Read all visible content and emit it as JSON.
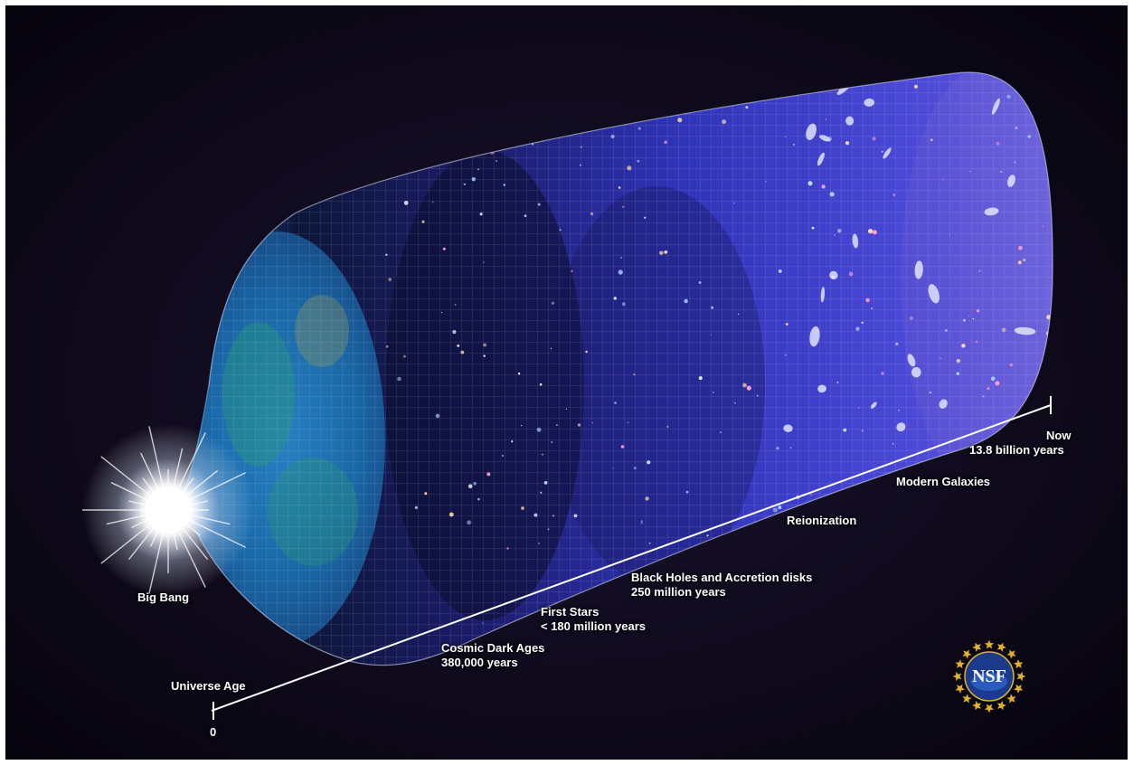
{
  "labels": {
    "big_bang": "Big Bang",
    "universe_age": "Universe Age",
    "zero": "0",
    "cosmic_dark_ages_title": "Cosmic Dark Ages",
    "cosmic_dark_ages_time": "380,000 years",
    "first_stars_title": "First Stars",
    "first_stars_time": "< 180 million years",
    "black_holes_title": "Black Holes and Accretion disks",
    "black_holes_time": "250 million years",
    "reionization": "Reionization",
    "modern_galaxies": "Modern Galaxies",
    "now_title": "Now",
    "now_time": "13.8 billion years"
  },
  "logo": {
    "text": "NSF"
  },
  "colors": {
    "background": "#070512",
    "cmb_blue": "#1c6fb8",
    "cmb_green": "#2aa06a",
    "dark_ages": "#1a1640",
    "galaxy_blue": "#3a3fd0",
    "violet": "#6a55d8",
    "label": "#ffffff",
    "nsf_gold": "#e0b12a",
    "nsf_blue": "#1c3a8c"
  }
}
